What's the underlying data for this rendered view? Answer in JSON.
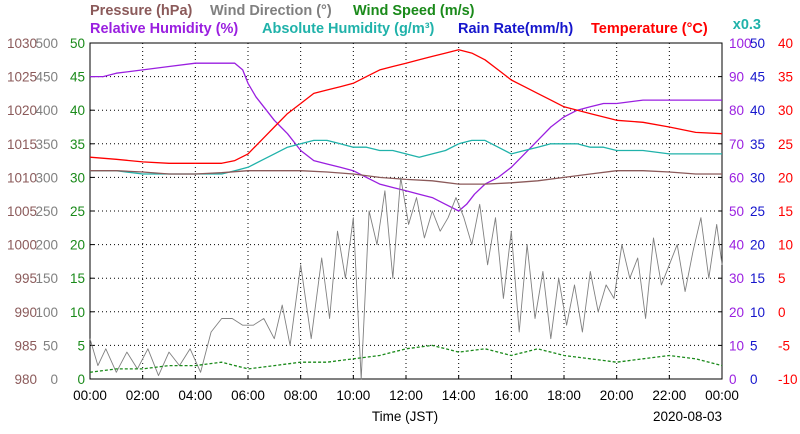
{
  "chart_data": {
    "type": "line",
    "date": "2020-08-03",
    "xlabel": "Time (JST)",
    "x_ticks": [
      "00:00",
      "02:00",
      "04:00",
      "06:00",
      "08:00",
      "10:00",
      "12:00",
      "14:00",
      "16:00",
      "18:00",
      "20:00",
      "22:00",
      "00:00"
    ],
    "x_range_hours": [
      0,
      24
    ],
    "grid": true,
    "legend": [
      {
        "name": "Pressure (hPa)",
        "color": "#8b5a5a"
      },
      {
        "name": "Wind Direction (°)",
        "color": "#808080"
      },
      {
        "name": "Wind Speed (m/s)",
        "color": "#1a8a1a"
      },
      {
        "name": "Relative Humidity (%)",
        "color": "#9a1fe0"
      },
      {
        "name": "Absolute Humidity (g/m³)",
        "color": "#20b2aa"
      },
      {
        "name": "Rain Rate(mm/h)",
        "color": "#1515cc"
      },
      {
        "name": "Temperature (°C)",
        "color": "#ff0000"
      }
    ],
    "scale_note": "x0.3",
    "axes": {
      "pressure": {
        "ticks": [
          "980",
          "985",
          "990",
          "995",
          "1000",
          "1005",
          "1010",
          "1015",
          "1020",
          "1025",
          "1030"
        ],
        "range": [
          980,
          1030
        ],
        "color": "#8b5a5a"
      },
      "wind_direction": {
        "ticks": [
          "0",
          "50",
          "100",
          "150",
          "200",
          "250",
          "300",
          "350",
          "400",
          "450",
          "500"
        ],
        "range": [
          0,
          500
        ],
        "color": "#808080"
      },
      "wind_speed": {
        "ticks": [
          "0",
          "5",
          "10",
          "15",
          "20",
          "25",
          "30",
          "35",
          "40",
          "45",
          "50"
        ],
        "range": [
          0,
          50
        ],
        "color": "#1a8a1a"
      },
      "humidity": {
        "ticks": [
          "0",
          "10",
          "20",
          "30",
          "40",
          "50",
          "60",
          "70",
          "80",
          "90",
          "100"
        ],
        "range": [
          0,
          100
        ],
        "color": "#9a1fe0"
      },
      "rain_rate": {
        "ticks": [
          "0",
          "5",
          "10",
          "15",
          "20",
          "25",
          "30",
          "35",
          "40",
          "45",
          "50"
        ],
        "range": [
          0,
          50
        ],
        "color": "#1515cc"
      },
      "temperature": {
        "ticks": [
          "-10",
          "-5",
          "0",
          "5",
          "10",
          "15",
          "20",
          "25",
          "30",
          "35",
          "40"
        ],
        "range": [
          -10,
          40
        ],
        "color": "#ff0000"
      }
    },
    "series": [
      {
        "name": "Relative Humidity (%)",
        "axis": "humidity",
        "color": "#9a1fe0",
        "x": [
          0,
          0.5,
          1,
          2,
          3,
          4,
          5,
          5.5,
          5.8,
          6,
          6.3,
          6.7,
          7,
          7.5,
          8,
          8.5,
          9,
          9.5,
          10,
          10.5,
          11,
          11.5,
          12,
          12.5,
          13,
          13.5,
          14,
          14.3,
          14.6,
          15,
          15.5,
          16,
          16.5,
          17,
          17.5,
          18,
          18.5,
          19,
          19.5,
          20,
          21,
          22,
          23,
          24
        ],
        "y": [
          90,
          90,
          91,
          92,
          93,
          94,
          94,
          94,
          92,
          88,
          84,
          80,
          77,
          73,
          68,
          65,
          64,
          63,
          62,
          60,
          58,
          57,
          56,
          55,
          54,
          52,
          50,
          52,
          55,
          58,
          60,
          63,
          67,
          71,
          75,
          78,
          80,
          81,
          82,
          82,
          83,
          83,
          83,
          83
        ]
      },
      {
        "name": "Temperature (°C)",
        "axis": "temperature",
        "color": "#ff0000",
        "x": [
          0,
          1,
          2,
          3,
          4,
          5,
          5.5,
          6,
          6.5,
          7,
          7.5,
          8,
          8.5,
          9,
          9.5,
          10,
          10.5,
          11,
          11.5,
          12,
          12.5,
          13,
          13.5,
          14,
          14.5,
          15,
          15.5,
          16,
          16.5,
          17,
          17.5,
          18,
          19,
          20,
          21,
          22,
          23,
          24
        ],
        "y": [
          23,
          22.7,
          22.3,
          22.1,
          22.1,
          22.1,
          22.5,
          23.5,
          25.5,
          27.5,
          29.5,
          31,
          32.5,
          33,
          33.5,
          34,
          35,
          36,
          36.5,
          37,
          37.5,
          38,
          38.5,
          39,
          38.5,
          37.5,
          36,
          34.5,
          33.5,
          32.5,
          31.5,
          30.5,
          29.5,
          28.5,
          28.2,
          27.5,
          26.7,
          26.5
        ]
      },
      {
        "name": "Absolute Humidity (g/m³)",
        "axis": "humidity",
        "color": "#20b2aa",
        "x": [
          0,
          1,
          2,
          3,
          4,
          5,
          5.5,
          6,
          6.5,
          7,
          7.5,
          8,
          8.5,
          9,
          9.5,
          10,
          10.5,
          11,
          11.5,
          12,
          12.5,
          13,
          13.5,
          14,
          14.5,
          15,
          15.5,
          16,
          16.5,
          17,
          17.5,
          18,
          18.5,
          19,
          19.5,
          20,
          21,
          22,
          23,
          24
        ],
        "y": [
          62,
          62,
          61,
          61,
          61,
          61,
          62,
          63,
          65,
          67,
          69,
          70,
          71,
          71,
          70,
          69,
          69,
          68,
          68,
          67,
          66,
          67,
          68,
          70,
          71,
          71,
          69,
          67,
          68,
          69,
          70,
          70,
          70,
          69,
          69,
          68,
          68,
          67,
          67,
          67
        ]
      },
      {
        "name": "Pressure (hPa)",
        "axis": "pressure",
        "color": "#8b5a5a",
        "x": [
          0,
          1,
          2,
          3,
          4,
          5,
          6,
          7,
          8,
          9,
          10,
          11,
          12,
          13,
          14,
          15,
          16,
          17,
          18,
          19,
          20,
          21,
          22,
          23,
          24
        ],
        "y": [
          1011,
          1011,
          1010.8,
          1010.5,
          1010.5,
          1010.7,
          1011,
          1011,
          1011,
          1010.8,
          1010.5,
          1010,
          1009.7,
          1009.5,
          1009,
          1009,
          1009.2,
          1009.5,
          1010,
          1010.5,
          1011,
          1011,
          1010.8,
          1010.5,
          1010.5
        ]
      },
      {
        "name": "Wind Direction (°)",
        "axis": "wind_direction",
        "color": "#808080",
        "x": [
          0,
          0.3,
          0.6,
          1,
          1.4,
          1.8,
          2.2,
          2.6,
          3,
          3.4,
          3.8,
          4.2,
          4.6,
          5,
          5.4,
          5.8,
          6.2,
          6.6,
          7,
          7.3,
          7.6,
          8,
          8.4,
          8.8,
          9.1,
          9.4,
          9.7,
          10,
          10.3,
          10.6,
          10.9,
          11.2,
          11.5,
          11.8,
          12.1,
          12.4,
          12.7,
          13,
          13.3,
          13.6,
          13.9,
          14.2,
          14.5,
          14.8,
          15.1,
          15.4,
          15.7,
          16,
          16.3,
          16.6,
          16.9,
          17.2,
          17.5,
          17.8,
          18.1,
          18.4,
          18.7,
          19,
          19.3,
          19.6,
          19.9,
          20.2,
          20.5,
          20.8,
          21.1,
          21.4,
          21.7,
          22,
          22.3,
          22.6,
          22.9,
          23.2,
          23.5,
          23.8,
          24
        ],
        "y": [
          60,
          20,
          45,
          10,
          40,
          15,
          45,
          5,
          40,
          20,
          45,
          10,
          70,
          90,
          90,
          80,
          80,
          90,
          60,
          110,
          50,
          170,
          60,
          180,
          90,
          220,
          150,
          240,
          0,
          250,
          200,
          280,
          150,
          300,
          230,
          270,
          210,
          250,
          220,
          240,
          270,
          240,
          200,
          260,
          170,
          240,
          120,
          220,
          70,
          200,
          90,
          160,
          60,
          150,
          80,
          140,
          70,
          160,
          100,
          140,
          120,
          200,
          150,
          180,
          90,
          210,
          140,
          170,
          200,
          130,
          190,
          240,
          150,
          230,
          170
        ]
      },
      {
        "name": "Wind Speed (m/s)",
        "axis": "wind_speed",
        "color": "#1a8a1a",
        "x": [
          0,
          1,
          2,
          3,
          4,
          5,
          6,
          7,
          8,
          9,
          10,
          11,
          12,
          13,
          14,
          15,
          16,
          17,
          18,
          19,
          20,
          21,
          22,
          23,
          24
        ],
        "y": [
          1,
          1.5,
          1.5,
          2,
          2,
          2.5,
          1.5,
          2,
          2.5,
          2.5,
          3,
          3.5,
          4.5,
          5,
          4,
          4.5,
          3.5,
          4.5,
          3.5,
          3,
          2.5,
          3,
          3.5,
          3,
          2
        ]
      }
    ]
  }
}
